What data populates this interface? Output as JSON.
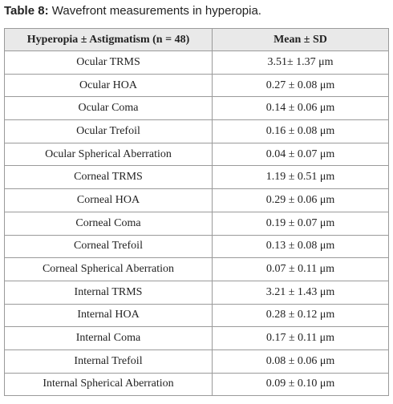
{
  "caption": {
    "label": "Table 8:",
    "text": " Wavefront measurements in hyperopia."
  },
  "table": {
    "headers": [
      "Hyperopia ± Astigmatism (n = 48)",
      "Mean ± SD"
    ],
    "rows": [
      [
        "Ocular TRMS",
        "3.51± 1.37 μm"
      ],
      [
        "Ocular HOA",
        "0.27 ± 0.08 μm"
      ],
      [
        "Ocular Coma",
        "0.14 ± 0.06 μm"
      ],
      [
        "Ocular Trefoil",
        "0.16 ± 0.08 μm"
      ],
      [
        "Ocular Spherical Aberration",
        "0.04 ± 0.07 μm"
      ],
      [
        "Corneal TRMS",
        "1.19 ± 0.51 μm"
      ],
      [
        "Corneal HOA",
        "0.29 ± 0.06 μm"
      ],
      [
        "Corneal Coma",
        "0.19 ± 0.07 μm"
      ],
      [
        "Corneal Trefoil",
        "0.13 ± 0.08 μm"
      ],
      [
        "Corneal Spherical Aberration",
        "0.07 ± 0.11 μm"
      ],
      [
        "Internal TRMS",
        "3.21 ± 1.43 μm"
      ],
      [
        "Internal HOA",
        "0.28 ± 0.12 μm"
      ],
      [
        "Internal Coma",
        "0.17 ± 0.11 μm"
      ],
      [
        "Internal Trefoil",
        "0.08 ± 0.06 μm"
      ],
      [
        "Internal Spherical Aberration",
        "0.09 ± 0.10 μm"
      ]
    ]
  }
}
